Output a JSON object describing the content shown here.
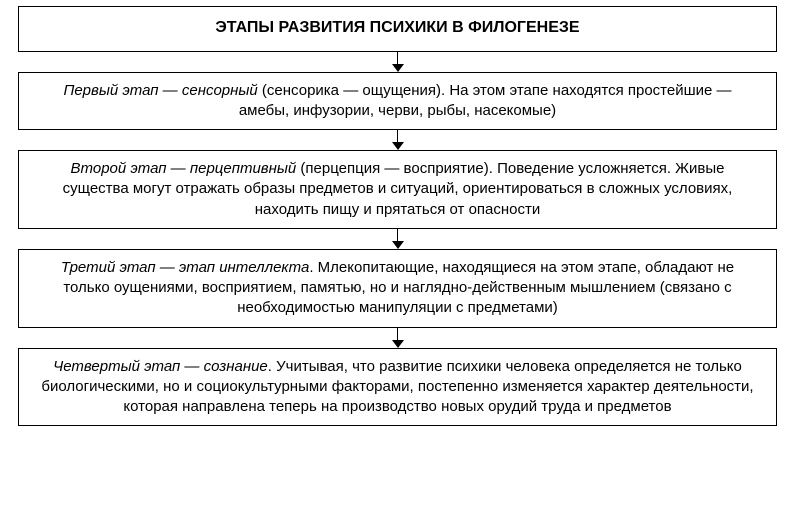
{
  "diagram": {
    "type": "flowchart",
    "background_color": "#ffffff",
    "border_color": "#000000",
    "text_color": "#000000",
    "arrow_color": "#000000",
    "title_fontsize": 16,
    "body_fontsize": 15,
    "title": "ЭТАПЫ РАЗВИТИЯ ПСИХИКИ В ФИЛОГЕНЕЗЕ",
    "stages": [
      {
        "lead": "Первый этап — сенсорный",
        "rest": " (сенсорика — ощущения). На этом этапе находятся простейшие — амебы, инфузории, черви, рыбы, насекомые)"
      },
      {
        "lead": "Второй этап — перцептивный",
        "rest": " (перцепция — восприятие). Поведение усложняется. Живые существа могут отражать образы предметов и ситуаций, ориентироваться в сложных условиях, находить пищу и прятаться от опасности"
      },
      {
        "lead": "Третий этап — этап интеллекта",
        "rest": ". Млекопитающие, находящиеся на этом этапе, обладают не только оущениями, восприятием, памятью, но и наглядно-действенным мышлением (связано с необходимостью манипуляции с предметами)"
      },
      {
        "lead": "Четвертый этап — сознание",
        "rest": ". Учитывая, что развитие психики человека определяется не только биологическими, но и социокультурными факторами, постепенно изменяется характер деятельности, которая направлена теперь на производство новых орудий труда и предметов"
      }
    ]
  }
}
